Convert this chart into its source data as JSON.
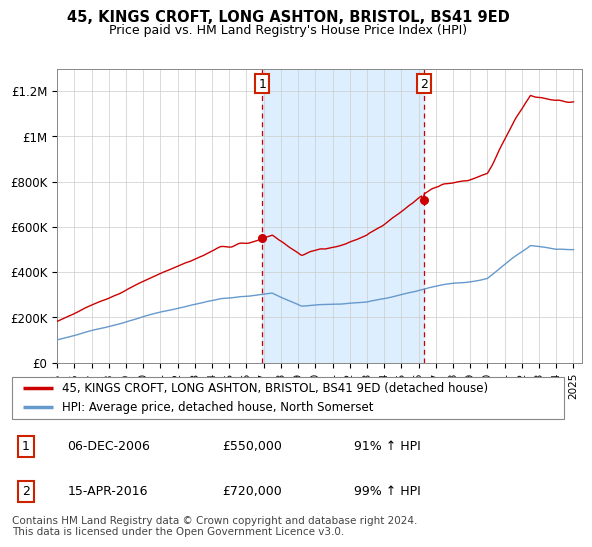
{
  "title": "45, KINGS CROFT, LONG ASHTON, BRISTOL, BS41 9ED",
  "subtitle": "Price paid vs. HM Land Registry's House Price Index (HPI)",
  "ylabel_ticks": [
    "£0",
    "£200K",
    "£400K",
    "£600K",
    "£800K",
    "£1M",
    "£1.2M"
  ],
  "ytick_values": [
    0,
    200000,
    400000,
    600000,
    800000,
    1000000,
    1200000
  ],
  "ylim": [
    0,
    1300000
  ],
  "xlim_start": 1995.0,
  "xlim_end": 2025.5,
  "sale1_date": 2006.917,
  "sale1_price": 550000,
  "sale2_date": 2016.29,
  "sale2_price": 720000,
  "house_color": "#cc0000",
  "hpi_color": "#6699cc",
  "shade_color": "#ddeeff",
  "vline_color": "#cc0000",
  "legend_house": "45, KINGS CROFT, LONG ASHTON, BRISTOL, BS41 9ED (detached house)",
  "legend_hpi": "HPI: Average price, detached house, North Somerset",
  "annotation1_box": "1",
  "annotation1_date": "06-DEC-2006",
  "annotation1_price": "£550,000",
  "annotation1_hpi": "91% ↑ HPI",
  "annotation2_box": "2",
  "annotation2_date": "15-APR-2016",
  "annotation2_price": "£720,000",
  "annotation2_hpi": "99% ↑ HPI",
  "footer": "Contains HM Land Registry data © Crown copyright and database right 2024.\nThis data is licensed under the Open Government Licence v3.0.",
  "x_tick_years": [
    1995,
    1996,
    1997,
    1998,
    1999,
    2000,
    2001,
    2002,
    2003,
    2004,
    2005,
    2006,
    2007,
    2008,
    2009,
    2010,
    2011,
    2012,
    2013,
    2014,
    2015,
    2016,
    2017,
    2018,
    2019,
    2020,
    2021,
    2022,
    2023,
    2024,
    2025
  ]
}
